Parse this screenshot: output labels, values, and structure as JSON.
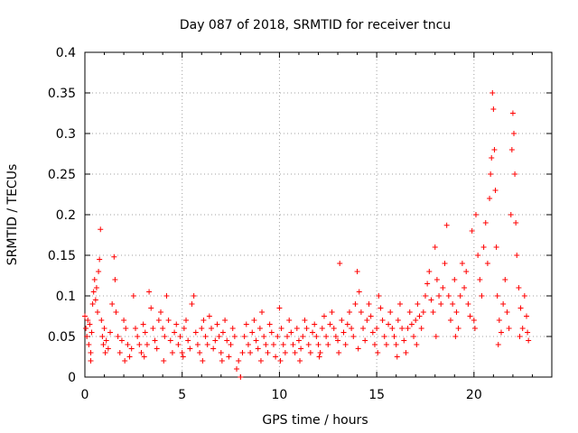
{
  "chart_data": {
    "type": "scatter",
    "title": "Day 087 of 2018, SRMTID for receiver tncu",
    "xlabel": "GPS time / hours",
    "ylabel": "SRMTID / TECUs",
    "xlim": [
      0,
      24
    ],
    "ylim": [
      0,
      0.4
    ],
    "xticks": [
      0,
      5,
      10,
      15,
      20
    ],
    "yticks": [
      0,
      0.05,
      0.1,
      0.15,
      0.2,
      0.25,
      0.3,
      0.35,
      0.4
    ],
    "xtick_labels": [
      "0",
      "5",
      "10",
      "15",
      "20"
    ],
    "ytick_labels": [
      "0",
      "0.05",
      "0.1",
      "0.15",
      "0.2",
      "0.25",
      "0.3",
      "0.35",
      "0.4"
    ],
    "grid": true,
    "marker": "plus",
    "color": "#ff0000",
    "series": [
      {
        "name": "SRMTID",
        "points": [
          [
            0.0,
            0.075
          ],
          [
            0.05,
            0.06
          ],
          [
            0.1,
            0.05
          ],
          [
            0.15,
            0.07
          ],
          [
            0.2,
            0.04
          ],
          [
            0.25,
            0.065
          ],
          [
            0.3,
            0.03
          ],
          [
            0.35,
            0.055
          ],
          [
            0.4,
            0.09
          ],
          [
            0.45,
            0.105
          ],
          [
            0.5,
            0.12
          ],
          [
            0.55,
            0.095
          ],
          [
            0.6,
            0.11
          ],
          [
            0.65,
            0.08
          ],
          [
            0.7,
            0.13
          ],
          [
            0.75,
            0.145
          ],
          [
            0.8,
            0.182
          ],
          [
            0.85,
            0.07
          ],
          [
            0.9,
            0.05
          ],
          [
            0.95,
            0.04
          ],
          [
            1.0,
            0.06
          ],
          [
            1.1,
            0.045
          ],
          [
            1.2,
            0.035
          ],
          [
            1.3,
            0.055
          ],
          [
            1.4,
            0.09
          ],
          [
            1.5,
            0.148
          ],
          [
            1.55,
            0.12
          ],
          [
            1.6,
            0.08
          ],
          [
            1.7,
            0.05
          ],
          [
            1.8,
            0.03
          ],
          [
            1.9,
            0.045
          ],
          [
            2.0,
            0.07
          ],
          [
            2.1,
            0.06
          ],
          [
            2.2,
            0.04
          ],
          [
            2.3,
            0.025
          ],
          [
            2.4,
            0.035
          ],
          [
            2.5,
            0.1
          ],
          [
            2.6,
            0.06
          ],
          [
            2.7,
            0.05
          ],
          [
            2.8,
            0.04
          ],
          [
            2.9,
            0.03
          ],
          [
            3.0,
            0.065
          ],
          [
            3.1,
            0.055
          ],
          [
            3.2,
            0.04
          ],
          [
            3.3,
            0.105
          ],
          [
            3.4,
            0.085
          ],
          [
            3.5,
            0.06
          ],
          [
            3.6,
            0.045
          ],
          [
            3.7,
            0.035
          ],
          [
            3.8,
            0.07
          ],
          [
            3.9,
            0.08
          ],
          [
            4.0,
            0.06
          ],
          [
            4.1,
            0.05
          ],
          [
            4.2,
            0.1
          ],
          [
            4.3,
            0.07
          ],
          [
            4.4,
            0.045
          ],
          [
            4.5,
            0.03
          ],
          [
            4.6,
            0.055
          ],
          [
            4.7,
            0.065
          ],
          [
            4.8,
            0.04
          ],
          [
            4.9,
            0.05
          ],
          [
            5.0,
            0.03
          ],
          [
            5.1,
            0.06
          ],
          [
            5.2,
            0.07
          ],
          [
            5.3,
            0.045
          ],
          [
            5.4,
            0.035
          ],
          [
            5.5,
            0.09
          ],
          [
            5.6,
            0.1
          ],
          [
            5.7,
            0.055
          ],
          [
            5.8,
            0.04
          ],
          [
            5.9,
            0.03
          ],
          [
            6.0,
            0.06
          ],
          [
            6.1,
            0.07
          ],
          [
            6.2,
            0.05
          ],
          [
            6.3,
            0.04
          ],
          [
            6.4,
            0.075
          ],
          [
            6.5,
            0.06
          ],
          [
            6.6,
            0.035
          ],
          [
            6.7,
            0.045
          ],
          [
            6.8,
            0.065
          ],
          [
            6.9,
            0.05
          ],
          [
            7.0,
            0.03
          ],
          [
            7.1,
            0.055
          ],
          [
            7.2,
            0.07
          ],
          [
            7.3,
            0.045
          ],
          [
            7.4,
            0.025
          ],
          [
            7.5,
            0.04
          ],
          [
            7.6,
            0.06
          ],
          [
            7.7,
            0.05
          ],
          [
            7.8,
            0.01
          ],
          [
            7.9,
            0.02
          ],
          [
            8.0,
            0.0
          ],
          [
            8.1,
            0.03
          ],
          [
            8.2,
            0.05
          ],
          [
            8.3,
            0.065
          ],
          [
            8.4,
            0.04
          ],
          [
            8.5,
            0.03
          ],
          [
            8.6,
            0.055
          ],
          [
            8.7,
            0.07
          ],
          [
            8.8,
            0.045
          ],
          [
            8.9,
            0.035
          ],
          [
            9.0,
            0.06
          ],
          [
            9.1,
            0.08
          ],
          [
            9.2,
            0.05
          ],
          [
            9.3,
            0.04
          ],
          [
            9.4,
            0.03
          ],
          [
            9.5,
            0.065
          ],
          [
            9.6,
            0.055
          ],
          [
            9.7,
            0.04
          ],
          [
            9.8,
            0.025
          ],
          [
            9.9,
            0.05
          ],
          [
            10.0,
            0.085
          ],
          [
            10.1,
            0.06
          ],
          [
            10.2,
            0.04
          ],
          [
            10.3,
            0.03
          ],
          [
            10.4,
            0.05
          ],
          [
            10.5,
            0.07
          ],
          [
            10.6,
            0.055
          ],
          [
            10.7,
            0.04
          ],
          [
            10.8,
            0.03
          ],
          [
            10.9,
            0.06
          ],
          [
            11.0,
            0.045
          ],
          [
            11.1,
            0.035
          ],
          [
            11.2,
            0.05
          ],
          [
            11.3,
            0.07
          ],
          [
            11.4,
            0.06
          ],
          [
            11.5,
            0.04
          ],
          [
            11.6,
            0.03
          ],
          [
            11.7,
            0.055
          ],
          [
            11.8,
            0.065
          ],
          [
            11.9,
            0.05
          ],
          [
            12.0,
            0.04
          ],
          [
            12.1,
            0.03
          ],
          [
            12.2,
            0.06
          ],
          [
            12.3,
            0.075
          ],
          [
            12.4,
            0.05
          ],
          [
            12.5,
            0.04
          ],
          [
            12.6,
            0.065
          ],
          [
            12.7,
            0.08
          ],
          [
            12.8,
            0.06
          ],
          [
            12.9,
            0.05
          ],
          [
            13.0,
            0.045
          ],
          [
            13.1,
            0.14
          ],
          [
            13.2,
            0.07
          ],
          [
            13.3,
            0.055
          ],
          [
            13.4,
            0.04
          ],
          [
            13.5,
            0.065
          ],
          [
            13.6,
            0.08
          ],
          [
            13.7,
            0.06
          ],
          [
            13.8,
            0.05
          ],
          [
            13.9,
            0.09
          ],
          [
            14.0,
            0.13
          ],
          [
            14.1,
            0.105
          ],
          [
            14.2,
            0.08
          ],
          [
            14.3,
            0.06
          ],
          [
            14.4,
            0.045
          ],
          [
            14.5,
            0.07
          ],
          [
            14.6,
            0.09
          ],
          [
            14.7,
            0.075
          ],
          [
            14.8,
            0.055
          ],
          [
            14.9,
            0.04
          ],
          [
            15.0,
            0.06
          ],
          [
            15.1,
            0.1
          ],
          [
            15.2,
            0.085
          ],
          [
            15.3,
            0.07
          ],
          [
            15.4,
            0.05
          ],
          [
            15.5,
            0.04
          ],
          [
            15.6,
            0.065
          ],
          [
            15.7,
            0.08
          ],
          [
            15.8,
            0.06
          ],
          [
            15.9,
            0.05
          ],
          [
            16.0,
            0.04
          ],
          [
            16.1,
            0.07
          ],
          [
            16.2,
            0.09
          ],
          [
            16.3,
            0.06
          ],
          [
            16.4,
            0.045
          ],
          [
            16.5,
            0.03
          ],
          [
            16.6,
            0.06
          ],
          [
            16.7,
            0.08
          ],
          [
            16.8,
            0.065
          ],
          [
            16.9,
            0.05
          ],
          [
            17.0,
            0.07
          ],
          [
            17.1,
            0.09
          ],
          [
            17.2,
            0.075
          ],
          [
            17.3,
            0.06
          ],
          [
            17.4,
            0.08
          ],
          [
            17.5,
            0.1
          ],
          [
            17.6,
            0.115
          ],
          [
            17.7,
            0.13
          ],
          [
            17.8,
            0.095
          ],
          [
            17.9,
            0.08
          ],
          [
            18.0,
            0.16
          ],
          [
            18.1,
            0.12
          ],
          [
            18.2,
            0.1
          ],
          [
            18.3,
            0.09
          ],
          [
            18.4,
            0.11
          ],
          [
            18.5,
            0.14
          ],
          [
            18.6,
            0.187
          ],
          [
            18.7,
            0.1
          ],
          [
            18.8,
            0.07
          ],
          [
            18.9,
            0.09
          ],
          [
            19.0,
            0.12
          ],
          [
            19.1,
            0.08
          ],
          [
            19.2,
            0.06
          ],
          [
            19.3,
            0.1
          ],
          [
            19.4,
            0.14
          ],
          [
            19.5,
            0.11
          ],
          [
            19.6,
            0.13
          ],
          [
            19.7,
            0.09
          ],
          [
            19.8,
            0.075
          ],
          [
            19.9,
            0.18
          ],
          [
            20.0,
            0.07
          ],
          [
            20.1,
            0.2
          ],
          [
            20.2,
            0.15
          ],
          [
            20.3,
            0.12
          ],
          [
            20.4,
            0.1
          ],
          [
            20.5,
            0.16
          ],
          [
            20.6,
            0.19
          ],
          [
            20.7,
            0.14
          ],
          [
            20.8,
            0.22
          ],
          [
            20.85,
            0.25
          ],
          [
            20.9,
            0.27
          ],
          [
            20.95,
            0.35
          ],
          [
            21.0,
            0.33
          ],
          [
            21.05,
            0.28
          ],
          [
            21.1,
            0.23
          ],
          [
            21.15,
            0.16
          ],
          [
            21.2,
            0.1
          ],
          [
            21.3,
            0.07
          ],
          [
            21.4,
            0.055
          ],
          [
            21.5,
            0.09
          ],
          [
            21.6,
            0.12
          ],
          [
            21.7,
            0.08
          ],
          [
            21.8,
            0.06
          ],
          [
            21.9,
            0.2
          ],
          [
            21.95,
            0.28
          ],
          [
            22.0,
            0.325
          ],
          [
            22.05,
            0.3
          ],
          [
            22.1,
            0.25
          ],
          [
            22.15,
            0.19
          ],
          [
            22.2,
            0.15
          ],
          [
            22.3,
            0.11
          ],
          [
            22.4,
            0.085
          ],
          [
            22.5,
            0.06
          ],
          [
            22.6,
            0.1
          ],
          [
            22.7,
            0.075
          ],
          [
            22.75,
            0.055
          ],
          [
            22.8,
            0.045
          ],
          [
            0.3,
            0.02
          ],
          [
            1.05,
            0.03
          ],
          [
            2.05,
            0.02
          ],
          [
            3.05,
            0.025
          ],
          [
            4.05,
            0.02
          ],
          [
            5.05,
            0.025
          ],
          [
            6.05,
            0.02
          ],
          [
            7.05,
            0.02
          ],
          [
            9.05,
            0.02
          ],
          [
            10.05,
            0.02
          ],
          [
            11.05,
            0.02
          ],
          [
            12.05,
            0.025
          ],
          [
            13.05,
            0.03
          ],
          [
            14.05,
            0.035
          ],
          [
            15.05,
            0.03
          ],
          [
            16.05,
            0.025
          ],
          [
            17.05,
            0.04
          ],
          [
            18.05,
            0.05
          ],
          [
            19.05,
            0.05
          ],
          [
            20.05,
            0.06
          ],
          [
            21.25,
            0.04
          ],
          [
            22.35,
            0.05
          ]
        ]
      }
    ]
  }
}
